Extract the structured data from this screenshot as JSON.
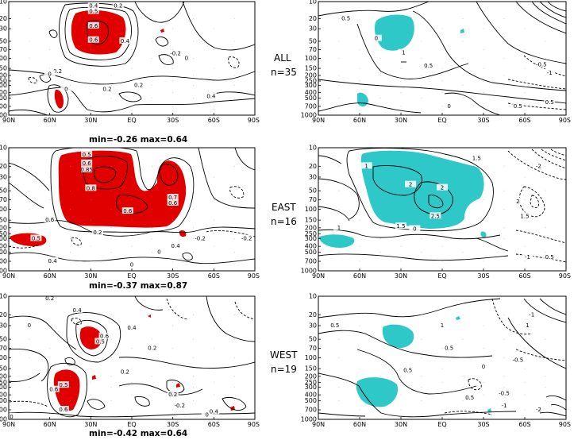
{
  "chart_data": {
    "type": "contour",
    "grid": false,
    "x_ticks": [
      "90N",
      "60N",
      "30N",
      "EQ",
      "30S",
      "60S",
      "90S"
    ],
    "y_ticks": [
      "10",
      "20",
      "30",
      "50",
      "70",
      "100",
      "150",
      "200",
      "250",
      "300",
      "400",
      "500",
      "700",
      "1000"
    ],
    "colors": {
      "positive_shading": "#e00000",
      "significance_shading": "#2ec8c8",
      "contour": "#000000"
    },
    "rows": [
      {
        "label": "ALL",
        "n_label": "n=35",
        "stats": "min=-0.26  max=0.64",
        "left_contour_labels": [
          {
            "text": "0.4",
            "x": 28,
            "p": 12
          },
          {
            "text": "0.5",
            "x": 28,
            "p": 15
          },
          {
            "text": "0.6",
            "x": 28,
            "p": 27
          },
          {
            "text": "0.6",
            "x": 28,
            "p": 48
          },
          {
            "text": "0.2",
            "x": 10,
            "p": 12
          },
          {
            "text": "0.4",
            "x": 5,
            "p": 50
          },
          {
            "text": "-0.2",
            "x": -32,
            "p": 83
          },
          {
            "text": "-0.2",
            "x": 55,
            "p": 170
          },
          {
            "text": "0",
            "x": -40,
            "p": 100
          },
          {
            "text": "0",
            "x": 60,
            "p": 190
          },
          {
            "text": "0.2",
            "x": 18,
            "p": 350
          },
          {
            "text": "0.2",
            "x": -5,
            "p": 300
          },
          {
            "text": "0.4",
            "x": -58,
            "p": 470
          },
          {
            "text": "0",
            "x": 48,
            "p": 350
          }
        ],
        "right_contour_labels": [
          {
            "text": "0.5",
            "x": 70,
            "p": 20
          },
          {
            "text": "1",
            "x": 28,
            "p": 80
          },
          {
            "text": "0.5",
            "x": 10,
            "p": 135
          },
          {
            "text": "0",
            "x": 48,
            "p": 45
          },
          {
            "text": "0.5",
            "x": -55,
            "p": 700
          },
          {
            "text": "0",
            "x": -5,
            "p": 700
          },
          {
            "text": "0.5",
            "x": -78,
            "p": 600
          },
          {
            "text": "-0.5",
            "x": -72,
            "p": 130
          },
          {
            "text": "-1",
            "x": -78,
            "p": 180
          }
        ]
      },
      {
        "label": "EAST",
        "n_label": "n=16",
        "stats": "min=-0.37  max=0.87",
        "left_contour_labels": [
          {
            "text": "0.5",
            "x": 33,
            "p": 13
          },
          {
            "text": "0.6",
            "x": 33,
            "p": 18
          },
          {
            "text": "0.85",
            "x": 33,
            "p": 23
          },
          {
            "text": "0.8",
            "x": 30,
            "p": 46
          },
          {
            "text": "0.6",
            "x": 3,
            "p": 108
          },
          {
            "text": "0.7",
            "x": -30,
            "p": 65
          },
          {
            "text": "0.6",
            "x": -30,
            "p": 80
          },
          {
            "text": "0.6",
            "x": 60,
            "p": 150
          },
          {
            "text": "-0.2",
            "x": -84,
            "p": 300
          },
          {
            "text": "0.2",
            "x": 25,
            "p": 240
          },
          {
            "text": "-0.2",
            "x": -50,
            "p": 300
          },
          {
            "text": "0.4",
            "x": -32,
            "p": 400
          },
          {
            "text": "0",
            "x": 0,
            "p": 800
          },
          {
            "text": "0.4",
            "x": 58,
            "p": 700
          },
          {
            "text": "0.5",
            "x": 70,
            "p": 300
          },
          {
            "text": "0",
            "x": -20,
            "p": 500
          }
        ],
        "right_contour_labels": [
          {
            "text": "1",
            "x": 55,
            "p": 20
          },
          {
            "text": "2",
            "x": 23,
            "p": 40
          },
          {
            "text": "2",
            "x": 0,
            "p": 45
          },
          {
            "text": "1.5",
            "x": -25,
            "p": 15
          },
          {
            "text": "2.5",
            "x": 5,
            "p": 130
          },
          {
            "text": "1.5",
            "x": 30,
            "p": 190
          },
          {
            "text": "0",
            "x": 20,
            "p": 210
          },
          {
            "text": "2",
            "x": -55,
            "p": 75
          },
          {
            "text": "1.5",
            "x": -60,
            "p": 130
          },
          {
            "text": "0.5",
            "x": -78,
            "p": 600
          },
          {
            "text": "1",
            "x": 75,
            "p": 200
          },
          {
            "text": "-2",
            "x": -70,
            "p": 20
          },
          {
            "text": "-1",
            "x": -62,
            "p": 600
          }
        ]
      },
      {
        "label": "WEST",
        "n_label": "n=19",
        "stats": "min=-0.42  max=0.64",
        "left_contour_labels": [
          {
            "text": "0.2",
            "x": 60,
            "p": 11
          },
          {
            "text": "0.4",
            "x": 40,
            "p": 17
          },
          {
            "text": "0.6",
            "x": 20,
            "p": 45
          },
          {
            "text": "0.5",
            "x": 23,
            "p": 55
          },
          {
            "text": "0.4",
            "x": 0,
            "p": 33
          },
          {
            "text": "0.2",
            "x": -15,
            "p": 70
          },
          {
            "text": "0",
            "x": 75,
            "p": 30
          },
          {
            "text": "0.6",
            "x": 57,
            "p": 330
          },
          {
            "text": "0.5",
            "x": 50,
            "p": 280
          },
          {
            "text": "0.6",
            "x": 50,
            "p": 700
          },
          {
            "text": "0.2",
            "x": 5,
            "p": 170
          },
          {
            "text": "0.2",
            "x": -30,
            "p": 400
          },
          {
            "text": "-0.2",
            "x": -35,
            "p": 600
          },
          {
            "text": "0",
            "x": -55,
            "p": 850
          },
          {
            "text": "0.4",
            "x": -60,
            "p": 750
          },
          {
            "text": "0",
            "x": 88,
            "p": 910
          }
        ],
        "right_contour_labels": [
          {
            "text": "0.5",
            "x": 78,
            "p": 30
          },
          {
            "text": "1",
            "x": 0,
            "p": 30
          },
          {
            "text": "0.5",
            "x": 25,
            "p": 160
          },
          {
            "text": "0.5",
            "x": -5,
            "p": 70
          },
          {
            "text": "0",
            "x": -30,
            "p": 140
          },
          {
            "text": "-0.5",
            "x": -55,
            "p": 110
          },
          {
            "text": "-1",
            "x": -65,
            "p": 20
          },
          {
            "text": "-0.5",
            "x": -45,
            "p": 380
          },
          {
            "text": "0.5",
            "x": -20,
            "p": 450
          },
          {
            "text": "-2",
            "x": -70,
            "p": 700
          },
          {
            "text": "1",
            "x": -62,
            "p": 30
          },
          {
            "text": "-1",
            "x": -45,
            "p": 600
          }
        ]
      }
    ]
  }
}
